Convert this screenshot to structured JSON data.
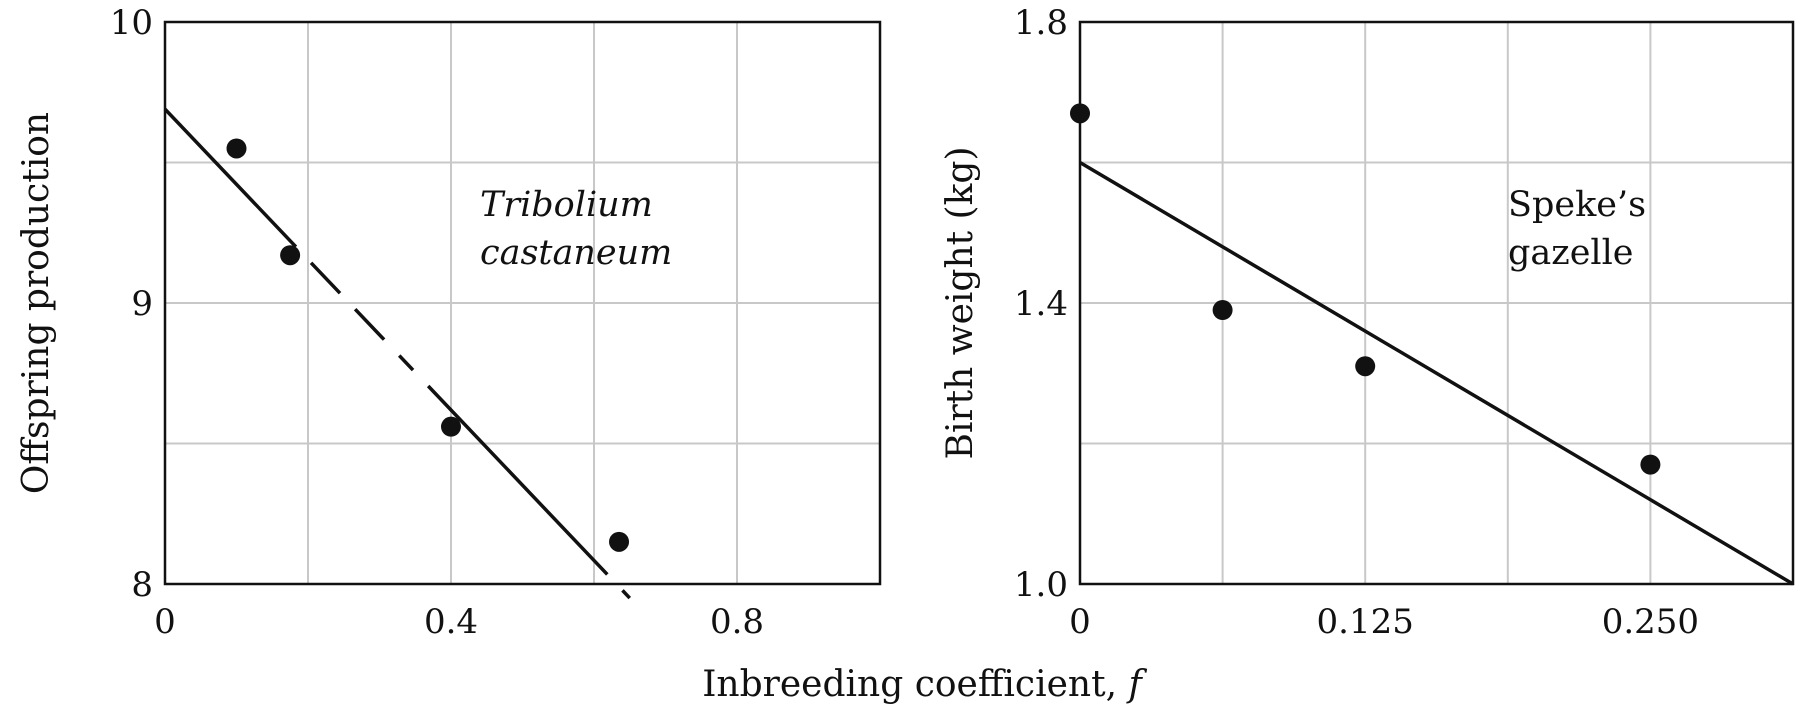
{
  "chart_data": [
    {
      "type": "scatter",
      "annotation": [
        "Tribolium",
        "castaneum"
      ],
      "annotation_style": "italic",
      "ylabel": "Offspring production",
      "xlim": [
        0,
        1.0
      ],
      "ylim": [
        8,
        10
      ],
      "xticks": [
        0,
        0.4,
        0.8
      ],
      "xtick_labels": [
        "0",
        "0.4",
        "0.8"
      ],
      "yticks": [
        8,
        9,
        10
      ],
      "ytick_labels": [
        "8",
        "9",
        "10"
      ],
      "grid_x": [
        0.2,
        0.4,
        0.6,
        0.8
      ],
      "grid_y": [
        8.5,
        9.0,
        9.5
      ],
      "grid": true,
      "points": [
        {
          "x": 0.1,
          "y": 9.55
        },
        {
          "x": 0.175,
          "y": 9.17
        },
        {
          "x": 0.4,
          "y": 8.56
        },
        {
          "x": 0.635,
          "y": 8.15
        }
      ],
      "fit_line": {
        "x0": 0,
        "y0": 9.69,
        "x1": 0.65,
        "y1": 7.95,
        "style": "dashed"
      }
    },
    {
      "type": "scatter",
      "annotation": [
        "Speke’s",
        "gazelle"
      ],
      "annotation_style": "normal",
      "ylabel": "Birth weight (kg)",
      "xlim": [
        0,
        0.3125
      ],
      "ylim": [
        1.0,
        1.8
      ],
      "xticks": [
        0,
        0.125,
        0.25
      ],
      "xtick_labels": [
        "0",
        "0.125",
        "0.250"
      ],
      "yticks": [
        1.0,
        1.4,
        1.8
      ],
      "ytick_labels": [
        "1.0",
        "1.4",
        "1.8"
      ],
      "grid_x": [
        0.0625,
        0.125,
        0.1875,
        0.25
      ],
      "grid_y": [
        1.2,
        1.4,
        1.6
      ],
      "grid": true,
      "points": [
        {
          "x": 0.0,
          "y": 1.67
        },
        {
          "x": 0.0625,
          "y": 1.39
        },
        {
          "x": 0.125,
          "y": 1.31
        },
        {
          "x": 0.25,
          "y": 1.17
        }
      ],
      "fit_line": {
        "x0": 0,
        "y0": 1.6,
        "x1": 0.3125,
        "y1": 1.0,
        "style": "solid"
      }
    }
  ],
  "shared_xlabel": "Inbreeding coefficient, ",
  "shared_xlabel_symbol": "f"
}
